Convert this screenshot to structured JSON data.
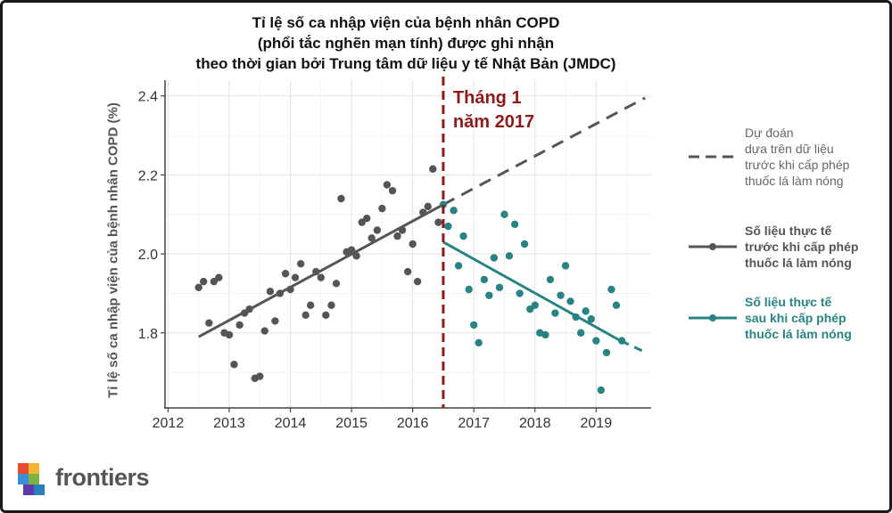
{
  "chart_data": {
    "type": "scatter",
    "title": [
      "Tỉ lệ số ca nhập viện của bệnh nhân COPD",
      "(phổi tắc nghẽn mạn tính) được ghi nhận",
      "theo thời gian bởi Trung tâm dữ liệu y tế Nhật Bản (JMDC)"
    ],
    "xlabel": "",
    "ylabel": "Tỉ lệ số ca nhập viện của bệnh nhân COPD (%)",
    "xlim": [
      2011.95,
      2019.9
    ],
    "ylim": [
      1.61,
      2.44
    ],
    "xticks": [
      2012,
      2013,
      2014,
      2015,
      2016,
      2017,
      2018,
      2019
    ],
    "yticks": [
      1.8,
      2.0,
      2.2,
      2.4
    ],
    "ytick_labels": [
      "1.8",
      "2.0",
      "2.2",
      "2.4"
    ],
    "grid": true,
    "legend_position": "right",
    "vline": {
      "x": 2016.5,
      "color": "#8b1a1a",
      "label_lines": [
        "Tháng 1",
        "năm 2017"
      ]
    },
    "series": [
      {
        "name": "Số liệu thực tế trước khi cấp phép thuốc lá làm nóng",
        "color": "#555555",
        "points": [
          [
            2012.5,
            1.915
          ],
          [
            2012.58,
            1.93
          ],
          [
            2012.67,
            1.825
          ],
          [
            2012.75,
            1.93
          ],
          [
            2012.83,
            1.94
          ],
          [
            2012.92,
            1.8
          ],
          [
            2013.0,
            1.795
          ],
          [
            2013.08,
            1.72
          ],
          [
            2013.17,
            1.82
          ],
          [
            2013.25,
            1.85
          ],
          [
            2013.33,
            1.86
          ],
          [
            2013.42,
            1.685
          ],
          [
            2013.5,
            1.69
          ],
          [
            2013.58,
            1.805
          ],
          [
            2013.67,
            1.905
          ],
          [
            2013.75,
            1.83
          ],
          [
            2013.83,
            1.9
          ],
          [
            2013.92,
            1.95
          ],
          [
            2014.0,
            1.91
          ],
          [
            2014.08,
            1.94
          ],
          [
            2014.17,
            1.975
          ],
          [
            2014.25,
            1.845
          ],
          [
            2014.33,
            1.87
          ],
          [
            2014.42,
            1.955
          ],
          [
            2014.5,
            1.94
          ],
          [
            2014.58,
            1.845
          ],
          [
            2014.67,
            1.87
          ],
          [
            2014.75,
            1.925
          ],
          [
            2014.83,
            2.14
          ],
          [
            2014.92,
            2.005
          ],
          [
            2015.0,
            2.01
          ],
          [
            2015.08,
            1.995
          ],
          [
            2015.17,
            2.08
          ],
          [
            2015.25,
            2.09
          ],
          [
            2015.33,
            2.04
          ],
          [
            2015.42,
            2.06
          ],
          [
            2015.5,
            2.115
          ],
          [
            2015.58,
            2.175
          ],
          [
            2015.67,
            2.16
          ],
          [
            2015.75,
            2.045
          ],
          [
            2015.83,
            2.06
          ],
          [
            2015.92,
            1.955
          ],
          [
            2016.0,
            2.025
          ],
          [
            2016.08,
            1.93
          ],
          [
            2016.17,
            2.105
          ],
          [
            2016.25,
            2.12
          ],
          [
            2016.33,
            2.215
          ],
          [
            2016.42,
            2.08
          ]
        ],
        "trend": [
          [
            2012.5,
            1.79
          ],
          [
            2016.5,
            2.125
          ]
        ]
      },
      {
        "name": "Số liệu thực tế sau khi cấp phép thuốc lá làm nóng",
        "color": "#2a8383",
        "points": [
          [
            2016.5,
            2.125
          ],
          [
            2016.58,
            2.07
          ],
          [
            2016.67,
            2.11
          ],
          [
            2016.75,
            1.97
          ],
          [
            2016.83,
            2.045
          ],
          [
            2016.92,
            1.91
          ],
          [
            2017.0,
            1.82
          ],
          [
            2017.08,
            1.775
          ],
          [
            2017.17,
            1.935
          ],
          [
            2017.25,
            1.895
          ],
          [
            2017.33,
            1.99
          ],
          [
            2017.42,
            1.915
          ],
          [
            2017.5,
            2.1
          ],
          [
            2017.58,
            1.995
          ],
          [
            2017.67,
            2.075
          ],
          [
            2017.75,
            1.9
          ],
          [
            2017.83,
            2.025
          ],
          [
            2017.92,
            1.86
          ],
          [
            2018.0,
            1.87
          ],
          [
            2018.08,
            1.8
          ],
          [
            2018.17,
            1.795
          ],
          [
            2018.25,
            1.935
          ],
          [
            2018.33,
            1.85
          ],
          [
            2018.42,
            1.895
          ],
          [
            2018.5,
            1.97
          ],
          [
            2018.58,
            1.88
          ],
          [
            2018.67,
            1.84
          ],
          [
            2018.75,
            1.8
          ],
          [
            2018.83,
            1.855
          ],
          [
            2018.92,
            1.835
          ],
          [
            2019.0,
            1.78
          ],
          [
            2019.08,
            1.655
          ],
          [
            2019.17,
            1.75
          ],
          [
            2019.25,
            1.91
          ],
          [
            2019.33,
            1.87
          ],
          [
            2019.42,
            1.78
          ]
        ],
        "trend": [
          [
            2016.5,
            2.03
          ],
          [
            2019.4,
            1.78
          ]
        ]
      },
      {
        "name": "Dự đoán dựa trên dữ liệu trước khi cấp phép thuốc lá làm nóng",
        "color": "#555555",
        "dashed": true,
        "trend": [
          [
            2016.5,
            2.125
          ],
          [
            2019.8,
            2.395
          ]
        ],
        "extension": {
          "trend": [
            [
              2019.4,
              1.78
            ],
            [
              2019.75,
              1.755
            ]
          ],
          "color": "#2a8383"
        }
      }
    ]
  },
  "legend": [
    {
      "lines": [
        "Dự đoán",
        "dựa trên dữ liệu",
        "trước khi cấp phép",
        "thuốc lá làm nóng"
      ],
      "color": "#555555",
      "text_color": "#666666",
      "bold": false,
      "style": "dashed"
    },
    {
      "lines": [
        "Số liệu thực tế",
        "trước khi cấp phép",
        "thuốc lá làm nóng"
      ],
      "color": "#555555",
      "text_color": "#555555",
      "bold": true,
      "style": "line-dot"
    },
    {
      "lines": [
        "Số liệu thực tế",
        "sau khi cấp phép",
        "thuốc lá làm nóng"
      ],
      "color": "#2a8383",
      "text_color": "#2a8383",
      "bold": true,
      "style": "line-dot"
    }
  ],
  "brand": {
    "name": "frontiers"
  },
  "icons": {
    "logo": "frontiers-cube-logo-icon"
  }
}
